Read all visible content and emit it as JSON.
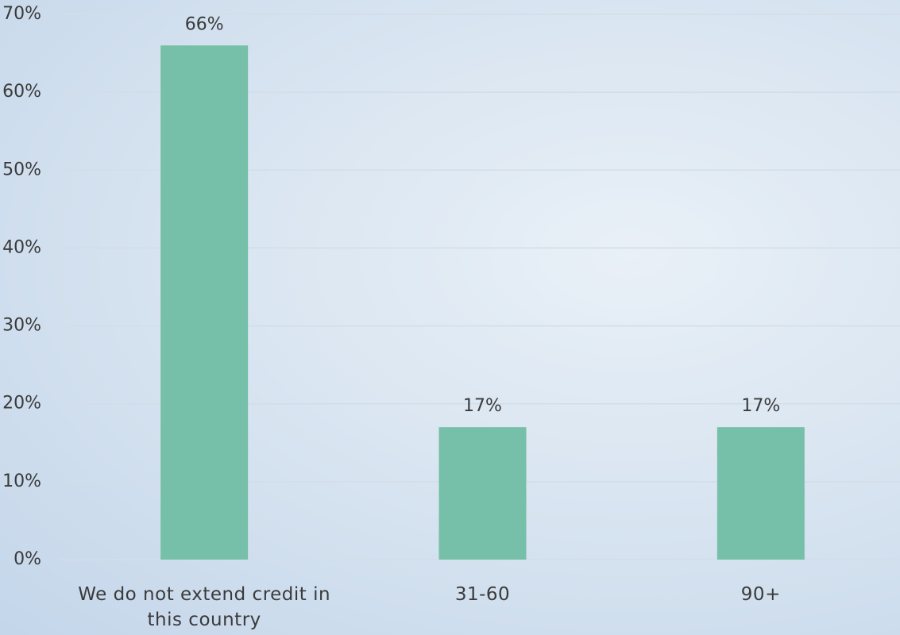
{
  "chart_data": {
    "type": "bar",
    "categories": [
      "We do not extend credit in this country",
      "31-60",
      "90+"
    ],
    "values": [
      66,
      17,
      17
    ],
    "value_labels": [
      "66%",
      "17%",
      "17%"
    ],
    "color": "#76bfa8",
    "ylim": [
      0,
      70
    ],
    "yticks": [
      {
        "value": 0,
        "label": "0%"
      },
      {
        "value": 10,
        "label": "10%"
      },
      {
        "value": 20,
        "label": "20%"
      },
      {
        "value": 30,
        "label": "30%"
      },
      {
        "value": 40,
        "label": "40%"
      },
      {
        "value": 50,
        "label": "50%"
      },
      {
        "value": 60,
        "label": "60%"
      },
      {
        "value": 70,
        "label": "70%"
      }
    ],
    "grid": true
  }
}
